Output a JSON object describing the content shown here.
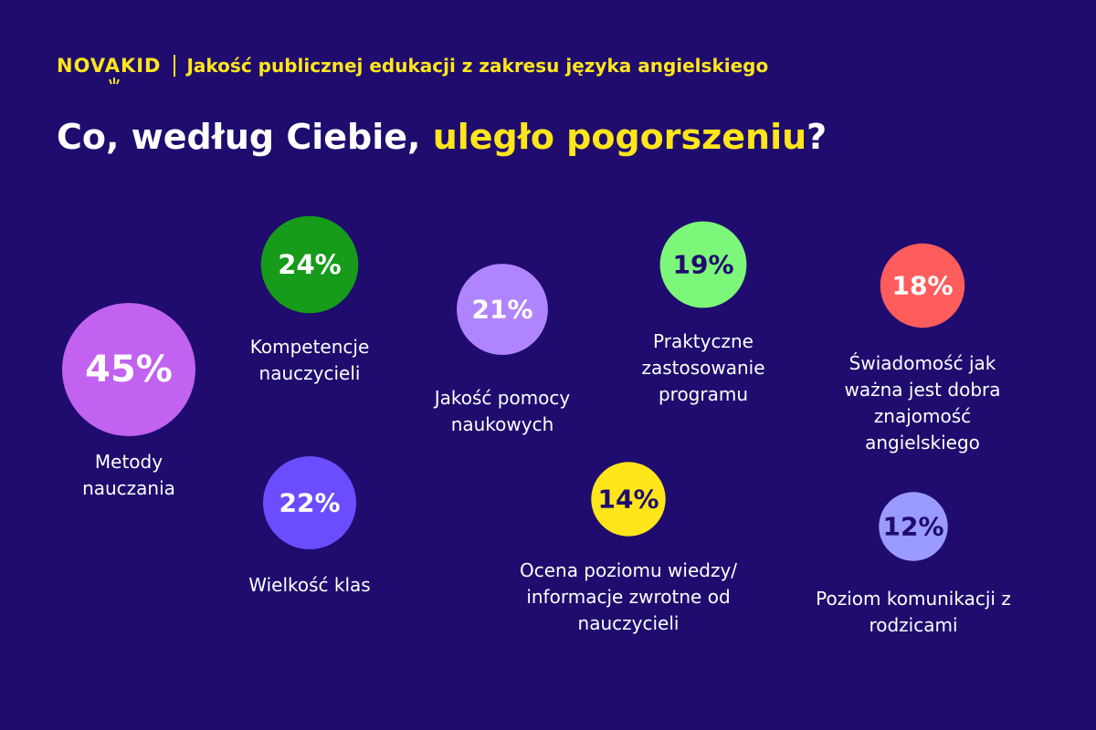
{
  "header": {
    "logo_text": "NOVAKID",
    "subtitle": "Jakość publicznej edukacji z zakresu języka angielskiego"
  },
  "title": {
    "prefix": "Co, według Ciebie, ",
    "highlight": "uległo pogorszeniu",
    "suffix": "?"
  },
  "colors": {
    "background": "#1f0c6e",
    "accent": "#ffe61a",
    "text": "#ffffff"
  },
  "chart_data": {
    "type": "bubble",
    "title": "Co, według Ciebie, uległo pogorszeniu?",
    "unit": "%",
    "items": [
      {
        "label": "Metody nauczania",
        "value": 45,
        "value_label": "45%",
        "color": "#c162f0",
        "text_color": "#ffffff"
      },
      {
        "label": "Kompetencje nauczycieli",
        "value": 24,
        "value_label": "24%",
        "color": "#169b1a",
        "text_color": "#ffffff"
      },
      {
        "label": "Wielkość klas",
        "value": 22,
        "value_label": "22%",
        "color": "#6b4dff",
        "text_color": "#ffffff"
      },
      {
        "label": "Jakość pomocy naukowych",
        "value": 21,
        "value_label": "21%",
        "color": "#b184ff",
        "text_color": "#ffffff"
      },
      {
        "label": "Praktyczne zastosowanie programu",
        "value": 19,
        "value_label": "19%",
        "color": "#7cf77a",
        "text_color": "#1f0c6e"
      },
      {
        "label": "Świadomość jak ważna jest dobra znajomość angielskiego",
        "value": 18,
        "value_label": "18%",
        "color": "#ff5c5c",
        "text_color": "#ffffff"
      },
      {
        "label": "Ocena poziomu wiedzy/ informacje zwrotne od nauczycieli",
        "value": 14,
        "value_label": "14%",
        "color": "#ffe61a",
        "text_color": "#1f0c6e"
      },
      {
        "label": "Poziom komunikacji z rodzicami",
        "value": 12,
        "value_label": "12%",
        "color": "#9b9bff",
        "text_color": "#1f0c6e"
      }
    ]
  }
}
